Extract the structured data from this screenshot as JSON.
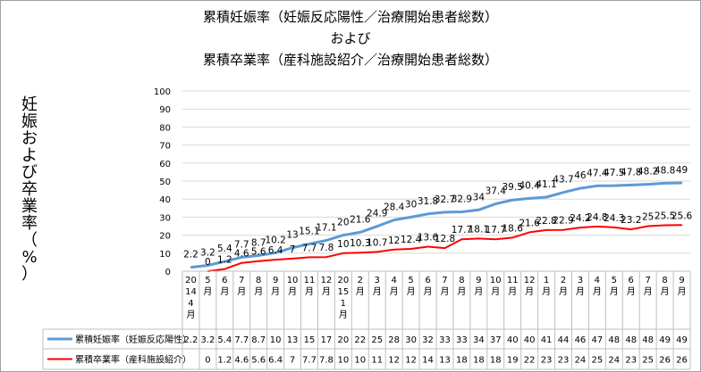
{
  "chart_data": {
    "type": "line",
    "title": [
      "累積妊娠率（妊娠反応陽性／治療開始患者総数）",
      "および",
      "累積卒業率（産科施設紹介／治療開始患者総数）"
    ],
    "ylabel": [
      "妊",
      "娠",
      "お",
      "よ",
      "び",
      "卒",
      "業",
      "率",
      "（",
      "%",
      "）"
    ],
    "ylim": [
      0,
      100
    ],
    "yticks": [
      "0",
      "10",
      "20",
      "30",
      "40",
      "50",
      "60",
      "70",
      "80",
      "90",
      "100"
    ],
    "grid": true,
    "categories": [
      [
        "20",
        "14",
        "4",
        "月"
      ],
      [
        "5",
        "月"
      ],
      [
        "6",
        "月"
      ],
      [
        "7",
        "月"
      ],
      [
        "8",
        "月"
      ],
      [
        "9",
        "月"
      ],
      [
        "10",
        "月"
      ],
      [
        "11",
        "月"
      ],
      [
        "12",
        "月"
      ],
      [
        "20",
        "15",
        "1",
        "月"
      ],
      [
        "2",
        "月"
      ],
      [
        "3",
        "月"
      ],
      [
        "4",
        "月"
      ],
      [
        "5",
        "月"
      ],
      [
        "6",
        "月"
      ],
      [
        "7",
        "月"
      ],
      [
        "8",
        "月"
      ],
      [
        "9",
        "月"
      ],
      [
        "10",
        "月"
      ],
      [
        "11",
        "月"
      ],
      [
        "12",
        "月"
      ],
      [
        "1",
        "月"
      ],
      [
        "2",
        "月"
      ],
      [
        "3",
        "月"
      ],
      [
        "4",
        "月"
      ],
      [
        "5",
        "月"
      ],
      [
        "6",
        "月"
      ],
      [
        "7",
        "月"
      ],
      [
        "8",
        "月"
      ],
      [
        "9",
        "月"
      ]
    ],
    "series": [
      {
        "name": "累積妊娠率（妊娠反応陽性）",
        "color": "#5b9bd5",
        "values": [
          2.2,
          3.2,
          5.4,
          7.7,
          8.7,
          10.2,
          13,
          15.1,
          17.1,
          20,
          21.6,
          24.9,
          28.4,
          30,
          31.8,
          32.7,
          32.9,
          34,
          37.4,
          39.5,
          40.4,
          41.1,
          43.7,
          46,
          47.4,
          47.5,
          47.8,
          48.2,
          48.8,
          49
        ],
        "labels": [
          "2.2",
          "3.2",
          "5.4",
          "7.7",
          "8.7",
          "10.2",
          "13",
          "15.1",
          "17.1",
          "20",
          "21.6",
          "24.9",
          "28.4",
          "30",
          "31.8",
          "32.7",
          "32.9",
          "34",
          "37.4",
          "39.5",
          "40.4",
          "41.1",
          "43.7",
          "46",
          "47.4",
          "47.5",
          "47.8",
          "48.2",
          "48.8",
          "49"
        ],
        "table": [
          "2.2",
          "3.2",
          "5.4",
          "7.7",
          "8.7",
          "10",
          "13",
          "15",
          "17",
          "20",
          "22",
          "25",
          "28",
          "30",
          "32",
          "33",
          "33",
          "34",
          "37",
          "40",
          "40",
          "41",
          "44",
          "46",
          "47",
          "48",
          "48",
          "48",
          "49",
          "49"
        ]
      },
      {
        "name": "累積卒業率（産科施設紹介）",
        "color": "#ff0000",
        "values": [
          null,
          0,
          1.2,
          4.6,
          5.6,
          6.4,
          7,
          7.7,
          7.8,
          10,
          10.3,
          10.7,
          12,
          12.4,
          13.6,
          12.8,
          17.7,
          18.1,
          17.7,
          18.6,
          21.6,
          22.8,
          22.9,
          24.2,
          24.8,
          24.3,
          23.2,
          25,
          25.5,
          25.6
        ],
        "labels": [
          "",
          "0",
          "1.2",
          "4.6",
          "5.6",
          "6.4",
          "7",
          "7.7",
          "7.8",
          "10",
          "10.3",
          "10.7",
          "12",
          "12.4",
          "13.6",
          "12.8",
          "17.7",
          "18.1",
          "17.7",
          "18.6",
          "21.6",
          "22.8",
          "22.9",
          "24.2",
          "24.8",
          "24.3",
          "23.2",
          "25",
          "25.5",
          "25.6"
        ],
        "table": [
          "",
          "0",
          "1.2",
          "4.6",
          "5.6",
          "6.4",
          "7",
          "7.7",
          "7.8",
          "10",
          "10",
          "11",
          "12",
          "12",
          "14",
          "13",
          "18",
          "18",
          "18",
          "19",
          "22",
          "23",
          "23",
          "24",
          "25",
          "24",
          "23",
          "25",
          "26",
          "26"
        ]
      }
    ]
  }
}
